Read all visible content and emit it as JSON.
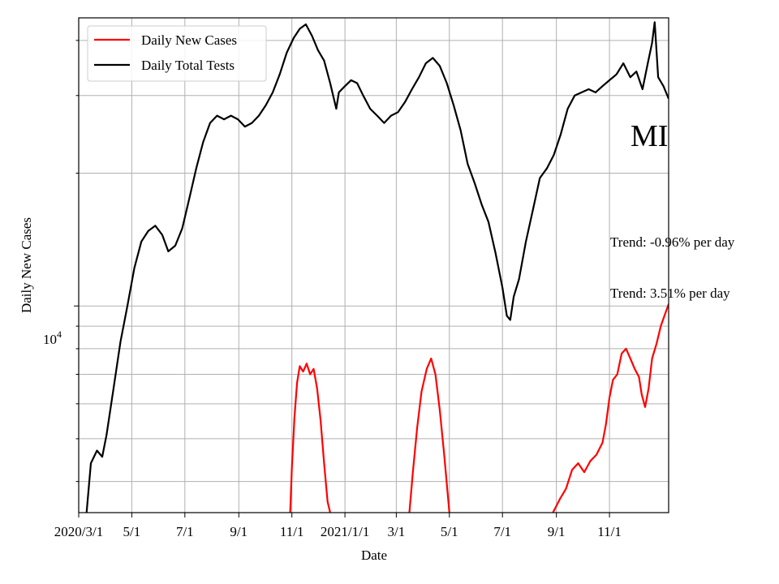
{
  "chart_data": {
    "type": "line",
    "title": "",
    "xlabel": "Date",
    "ylabel": "Daily New Cases",
    "y_scale": "log",
    "ylim": [
      3400,
      45000
    ],
    "xlim": [
      "2020-03-01",
      "2022-01-08"
    ],
    "grid": true,
    "legend_position": "top-left",
    "x_ticks": [
      {
        "date": "2020-03-01",
        "label": "2020/3/1"
      },
      {
        "date": "2020-05-01",
        "label": "5/1"
      },
      {
        "date": "2020-07-01",
        "label": "7/1"
      },
      {
        "date": "2020-09-01",
        "label": "9/1"
      },
      {
        "date": "2020-11-01",
        "label": "11/1"
      },
      {
        "date": "2021-01-01",
        "label": "2021/1/1"
      },
      {
        "date": "2021-03-01",
        "label": "3/1"
      },
      {
        "date": "2021-05-01",
        "label": "5/1"
      },
      {
        "date": "2021-07-01",
        "label": "7/1"
      },
      {
        "date": "2021-09-01",
        "label": "9/1"
      },
      {
        "date": "2021-11-01",
        "label": "11/1"
      }
    ],
    "y_tick_label": {
      "base": "10",
      "exponent": "4",
      "value": 10000
    },
    "annotations": [
      {
        "text": "MI"
      },
      {
        "text": "Trend: -0.96% per day"
      },
      {
        "text": "Trend: 3.51% per day"
      }
    ],
    "series": [
      {
        "name": "Daily New Cases",
        "color": "#ff0000",
        "points": [
          [
            "2020-10-30",
            3400
          ],
          [
            "2020-11-01",
            4300
          ],
          [
            "2020-11-04",
            5600
          ],
          [
            "2020-11-07",
            6700
          ],
          [
            "2020-11-10",
            7300
          ],
          [
            "2020-11-14",
            7100
          ],
          [
            "2020-11-18",
            7400
          ],
          [
            "2020-11-22",
            7000
          ],
          [
            "2020-11-26",
            7200
          ],
          [
            "2020-11-30",
            6500
          ],
          [
            "2020-12-04",
            5500
          ],
          [
            "2020-12-08",
            4400
          ],
          [
            "2020-12-12",
            3600
          ],
          [
            "2020-12-15",
            3400
          ],
          [
            "2021-03-16",
            3400
          ],
          [
            "2021-03-20",
            4200
          ],
          [
            "2021-03-25",
            5300
          ],
          [
            "2021-03-30",
            6400
          ],
          [
            "2021-04-05",
            7200
          ],
          [
            "2021-04-10",
            7600
          ],
          [
            "2021-04-15",
            7000
          ],
          [
            "2021-04-20",
            5800
          ],
          [
            "2021-04-25",
            4600
          ],
          [
            "2021-05-01",
            3400
          ],
          [
            "2021-08-28",
            3400
          ],
          [
            "2021-09-05",
            3650
          ],
          [
            "2021-09-12",
            3850
          ],
          [
            "2021-09-19",
            4250
          ],
          [
            "2021-09-26",
            4400
          ],
          [
            "2021-10-03",
            4200
          ],
          [
            "2021-10-10",
            4450
          ],
          [
            "2021-10-17",
            4600
          ],
          [
            "2021-10-24",
            4900
          ],
          [
            "2021-10-28",
            5400
          ],
          [
            "2021-11-01",
            6200
          ],
          [
            "2021-11-05",
            6800
          ],
          [
            "2021-11-10",
            7000
          ],
          [
            "2021-11-15",
            7800
          ],
          [
            "2021-11-20",
            8000
          ],
          [
            "2021-11-25",
            7600
          ],
          [
            "2021-11-30",
            7200
          ],
          [
            "2021-12-05",
            6900
          ],
          [
            "2021-12-08",
            6300
          ],
          [
            "2021-12-12",
            5900
          ],
          [
            "2021-12-16",
            6500
          ],
          [
            "2021-12-20",
            7600
          ],
          [
            "2021-12-25",
            8200
          ],
          [
            "2021-12-30",
            9000
          ],
          [
            "2022-01-04",
            9600
          ],
          [
            "2022-01-08",
            10100
          ]
        ]
      },
      {
        "name": "Daily Total Tests",
        "color": "#000000",
        "points": [
          [
            "2020-03-10",
            3400
          ],
          [
            "2020-03-15",
            4400
          ],
          [
            "2020-03-22",
            4700
          ],
          [
            "2020-03-28",
            4550
          ],
          [
            "2020-04-02",
            5100
          ],
          [
            "2020-04-10",
            6500
          ],
          [
            "2020-04-18",
            8300
          ],
          [
            "2020-04-26",
            10000
          ],
          [
            "2020-05-04",
            12200
          ],
          [
            "2020-05-12",
            14000
          ],
          [
            "2020-05-20",
            14800
          ],
          [
            "2020-05-28",
            15200
          ],
          [
            "2020-06-05",
            14500
          ],
          [
            "2020-06-12",
            13300
          ],
          [
            "2020-06-20",
            13700
          ],
          [
            "2020-06-28",
            15000
          ],
          [
            "2020-07-06",
            17500
          ],
          [
            "2020-07-14",
            20500
          ],
          [
            "2020-07-22",
            23500
          ],
          [
            "2020-07-30",
            26000
          ],
          [
            "2020-08-07",
            27000
          ],
          [
            "2020-08-15",
            26500
          ],
          [
            "2020-08-23",
            27000
          ],
          [
            "2020-08-31",
            26500
          ],
          [
            "2020-09-08",
            25500
          ],
          [
            "2020-09-16",
            26000
          ],
          [
            "2020-09-24",
            27000
          ],
          [
            "2020-10-02",
            28500
          ],
          [
            "2020-10-10",
            30500
          ],
          [
            "2020-10-18",
            33500
          ],
          [
            "2020-10-26",
            37500
          ],
          [
            "2020-11-03",
            40500
          ],
          [
            "2020-11-10",
            42500
          ],
          [
            "2020-11-17",
            43500
          ],
          [
            "2020-11-24",
            41000
          ],
          [
            "2020-12-01",
            38000
          ],
          [
            "2020-12-08",
            36000
          ],
          [
            "2020-12-15",
            32000
          ],
          [
            "2020-12-22",
            28000
          ],
          [
            "2020-12-25",
            30500
          ],
          [
            "2021-01-01",
            31500
          ],
          [
            "2021-01-08",
            32500
          ],
          [
            "2021-01-15",
            32000
          ],
          [
            "2021-01-22",
            30000
          ],
          [
            "2021-01-30",
            28000
          ],
          [
            "2021-02-07",
            27000
          ],
          [
            "2021-02-15",
            26000
          ],
          [
            "2021-02-23",
            27000
          ],
          [
            "2021-03-03",
            27500
          ],
          [
            "2021-03-11",
            29000
          ],
          [
            "2021-03-19",
            31000
          ],
          [
            "2021-03-27",
            33000
          ],
          [
            "2021-04-04",
            35500
          ],
          [
            "2021-04-12",
            36500
          ],
          [
            "2021-04-20",
            35000
          ],
          [
            "2021-04-28",
            32000
          ],
          [
            "2021-05-06",
            28500
          ],
          [
            "2021-05-14",
            25000
          ],
          [
            "2021-05-22",
            21000
          ],
          [
            "2021-05-30",
            19000
          ],
          [
            "2021-06-07",
            17000
          ],
          [
            "2021-06-15",
            15500
          ],
          [
            "2021-06-23",
            13200
          ],
          [
            "2021-07-01",
            11000
          ],
          [
            "2021-07-06",
            9500
          ],
          [
            "2021-07-10",
            9300
          ],
          [
            "2021-07-14",
            10500
          ],
          [
            "2021-07-20",
            11500
          ],
          [
            "2021-07-28",
            14000
          ],
          [
            "2021-08-05",
            16500
          ],
          [
            "2021-08-13",
            19500
          ],
          [
            "2021-08-21",
            20500
          ],
          [
            "2021-08-29",
            22000
          ],
          [
            "2021-09-06",
            24500
          ],
          [
            "2021-09-14",
            28000
          ],
          [
            "2021-09-22",
            30000
          ],
          [
            "2021-09-30",
            30500
          ],
          [
            "2021-10-08",
            31000
          ],
          [
            "2021-10-16",
            30500
          ],
          [
            "2021-10-24",
            31500
          ],
          [
            "2021-11-01",
            32500
          ],
          [
            "2021-11-09",
            33500
          ],
          [
            "2021-11-17",
            35500
          ],
          [
            "2021-11-25",
            33000
          ],
          [
            "2021-12-02",
            34000
          ],
          [
            "2021-12-09",
            31000
          ],
          [
            "2021-12-15",
            35500
          ],
          [
            "2021-12-20",
            39500
          ],
          [
            "2021-12-23",
            44000
          ],
          [
            "2021-12-27",
            33000
          ],
          [
            "2022-01-02",
            31500
          ],
          [
            "2022-01-08",
            29500
          ]
        ]
      }
    ]
  }
}
